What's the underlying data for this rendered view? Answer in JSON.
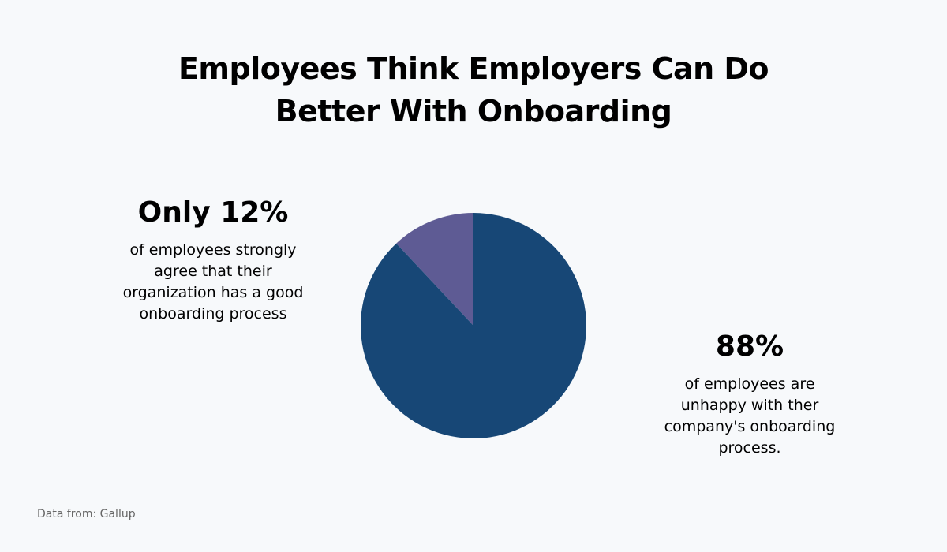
{
  "title_lines": [
    "Employees Think Employers Can Do",
    "Better With Onboarding"
  ],
  "chart_data": {
    "type": "pie",
    "title": "Employees Think Employers Can Do Better With Onboarding",
    "slices": [
      {
        "label": "Only 12%",
        "value": 12,
        "color": "#5e5b94",
        "description": "of employees strongly agree that their organization has a good onboarding process"
      },
      {
        "label": "88%",
        "value": 88,
        "color": "#174776",
        "description": "of employees are unhappy with ther company's onboarding process."
      }
    ],
    "start": "12 o'clock",
    "direction": "counterclockwise-first-slice"
  },
  "callouts": {
    "left": {
      "big": "Only 12%",
      "lines": [
        "of employees strongly",
        "agree that their",
        "organization has a good",
        "onboarding process"
      ]
    },
    "right": {
      "big": "88%",
      "lines": [
        "of employees are",
        "unhappy with ther",
        "company's onboarding",
        "process."
      ]
    }
  },
  "source": "Data from: Gallup"
}
